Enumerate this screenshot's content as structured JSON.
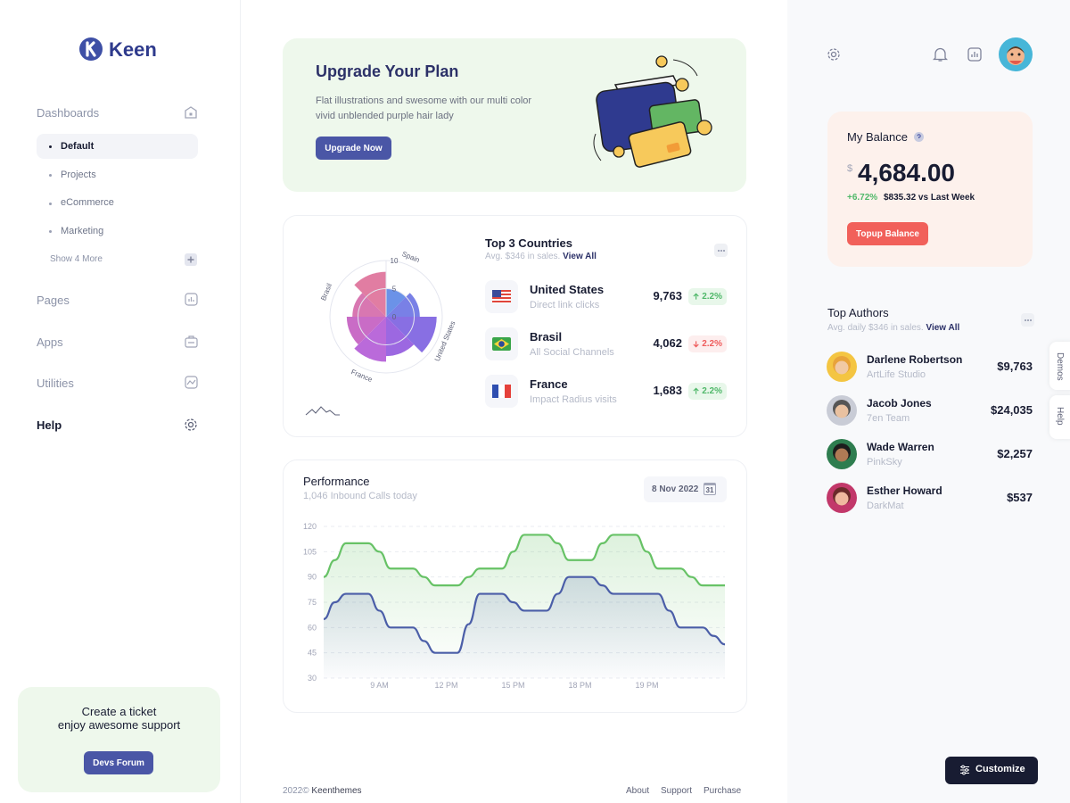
{
  "sidebar": {
    "brand": "Keen",
    "dashboards": "Dashboards",
    "items": [
      "Default",
      "Projects",
      "eCommerce",
      "Marketing"
    ],
    "more": "Show 4 More",
    "sections": [
      "Pages",
      "Apps",
      "Utilities",
      "Help"
    ],
    "ticket": {
      "title": "Create a ticket",
      "subtitle": "enjoy awesome support",
      "button": "Devs Forum"
    }
  },
  "upgrade": {
    "title": "Upgrade Your Plan",
    "text": [
      "Flat illustrations and swesome with our multi color",
      "vivid unblended purple hair lady"
    ],
    "button": "Upgrade Now"
  },
  "countries": {
    "title": "Top 3 Countries",
    "subtitle": "Avg. $346 in sales.",
    "link": "View All",
    "rows": [
      {
        "name": "United States",
        "source": "Direct link clicks",
        "value": "9,763",
        "change": "2.2%",
        "direction": "up"
      },
      {
        "name": "Brasil",
        "source": "All Social Channels",
        "value": "4,062",
        "change": "2.2%",
        "direction": "down"
      },
      {
        "name": "France",
        "source": "Impact Radius visits",
        "value": "1,683",
        "change": "2.2%",
        "direction": "up"
      }
    ]
  },
  "performance": {
    "title": "Performance",
    "subtitle": "1,046 Inbound Calls today",
    "date": "8 Nov 2022",
    "calendar_day": "31"
  },
  "chart_data": [
    {
      "type": "polar",
      "categories": [
        "Spain",
        null,
        "United States",
        null,
        "France",
        null,
        "Brasil",
        null
      ],
      "values": [
        5,
        6,
        9,
        7,
        8,
        7,
        6,
        8
      ],
      "colors": [
        "#5b86e5",
        "#6a72e3",
        "#7b5fe0",
        "#9158de",
        "#b25ad6",
        "#c35cc0",
        "#d468a8",
        "#de6f98"
      ],
      "ylim": [
        0,
        10
      ],
      "yticks": [
        0,
        5,
        10
      ]
    },
    {
      "type": "line",
      "categories": [
        null,
        null,
        null,
        null,
        null,
        "9 AM",
        null,
        null,
        null,
        null,
        null,
        "12 PM",
        null,
        null,
        null,
        null,
        null,
        "15 PM",
        null,
        null,
        null,
        null,
        null,
        "18 PM",
        null,
        null,
        null,
        null,
        null,
        "19 PM",
        null,
        null,
        null,
        null,
        null,
        null,
        null
      ],
      "series": [
        {
          "color": "#67c266",
          "values": [
            90,
            100,
            110,
            110,
            110,
            105,
            95,
            95,
            95,
            90,
            85,
            85,
            85,
            90,
            95,
            95,
            95,
            105,
            115,
            115,
            115,
            110,
            100,
            100,
            100,
            110,
            115,
            115,
            115,
            105,
            95,
            95,
            95,
            90,
            85,
            85,
            85
          ]
        },
        {
          "color": "#4b5ea8",
          "values": [
            65,
            75,
            80,
            80,
            80,
            70,
            60,
            60,
            60,
            52,
            45,
            45,
            45,
            62,
            80,
            80,
            80,
            75,
            70,
            70,
            70,
            80,
            90,
            90,
            90,
            85,
            80,
            80,
            80,
            80,
            80,
            70,
            60,
            60,
            60,
            55,
            50
          ]
        }
      ],
      "ylim": [
        30,
        120
      ],
      "yticks": [
        30,
        45,
        60,
        75,
        90,
        105,
        120
      ],
      "grid": true
    }
  ],
  "balance": {
    "title": "My Balance",
    "currency": "$",
    "amount": "4,684.00",
    "change": "+6.72%",
    "comparison": "$835.32 vs Last Week",
    "button": "Topup Balance"
  },
  "authors": {
    "title": "Top Authors",
    "subtitle": "Avg. daily $346 in sales.",
    "link": "View All",
    "rows": [
      {
        "name": "Darlene Robertson",
        "company": "ArtLife Studio",
        "amount": "$9,763"
      },
      {
        "name": "Jacob Jones",
        "company": "7en Team",
        "amount": "$24,035"
      },
      {
        "name": "Wade Warren",
        "company": "PinkSky",
        "amount": "$2,257"
      },
      {
        "name": "Esther Howard",
        "company": "DarkMat",
        "amount": "$537"
      }
    ]
  },
  "side_tabs": [
    "Demos",
    "Help"
  ],
  "customize": "Customize",
  "footer": {
    "year": "2022©",
    "company": "Keenthemes",
    "links": [
      "About",
      "Support",
      "Purchase"
    ]
  }
}
